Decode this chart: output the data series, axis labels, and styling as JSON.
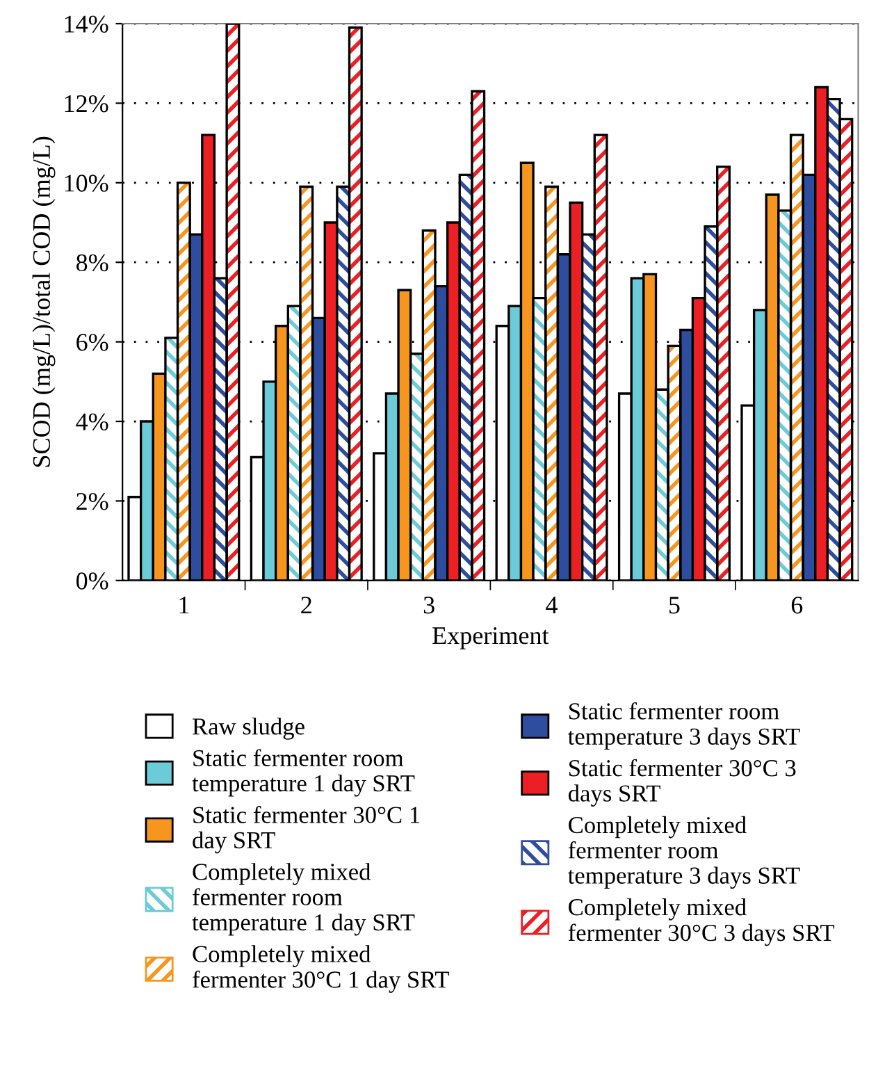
{
  "chart_data": {
    "type": "bar",
    "xlabel": "Experiment",
    "ylabel": "SCOD (mg/L)/total COD (mg/L)",
    "categories": [
      "1",
      "2",
      "3",
      "4",
      "5",
      "6"
    ],
    "series": [
      {
        "name": "Raw sludge",
        "color": "#ffffff",
        "values": [
          2.1,
          3.1,
          3.2,
          6.4,
          4.7,
          4.4
        ]
      },
      {
        "name": "Static fermenter room\ntemperature 1 day SRT",
        "color": "#6ccbd8",
        "values": [
          4.0,
          5.0,
          4.7,
          6.9,
          7.6,
          6.8
        ]
      },
      {
        "name": "Static fermenter 30°C 1\nday SRT",
        "color": "#f6961e",
        "values": [
          5.2,
          6.4,
          7.3,
          10.5,
          7.7,
          9.7
        ]
      },
      {
        "name": "Completely mixed\nfermenter room\ntemperature 1 day SRT",
        "color": "#6ccbd8",
        "values": [
          6.1,
          6.9,
          5.7,
          7.1,
          4.8,
          9.3
        ]
      },
      {
        "name": "Completely mixed\nfermenter 30°C 1 day SRT",
        "color": "#f6961e",
        "values": [
          10.0,
          9.9,
          8.8,
          9.9,
          5.9,
          11.2
        ]
      },
      {
        "name": "Static fermenter room\ntemperature 3 days SRT",
        "color": "#2e4d9e",
        "values": [
          8.7,
          6.6,
          7.4,
          8.2,
          6.3,
          10.2
        ]
      },
      {
        "name": "Static fermenter 30°C 3\ndays SRT",
        "color": "#ec2024",
        "values": [
          11.2,
          9.0,
          9.0,
          9.5,
          7.1,
          12.4
        ]
      },
      {
        "name": "Completely mixed\nfermenter room\ntemperature 3 days SRT",
        "color": "#2e4d9e",
        "values": [
          7.6,
          9.9,
          10.2,
          8.7,
          8.9,
          12.1
        ]
      },
      {
        "name": "Completely mixed\nfermenter 30°C 3 days SRT",
        "color": "#ec2024",
        "values": [
          14.0,
          13.9,
          12.3,
          11.2,
          10.4,
          11.6
        ]
      }
    ],
    "ylim": [
      0,
      14
    ],
    "yticks": [
      {
        "value": 0,
        "label": "0%"
      },
      {
        "value": 2,
        "label": "2%"
      },
      {
        "value": 4,
        "label": "4%"
      },
      {
        "value": 6,
        "label": "6%"
      },
      {
        "value": 8,
        "label": "8%"
      },
      {
        "value": 10,
        "label": "10%"
      },
      {
        "value": 12,
        "label": "12%"
      },
      {
        "value": 14,
        "label": "14%"
      }
    ],
    "grid": "y",
    "legend": "bottom"
  }
}
